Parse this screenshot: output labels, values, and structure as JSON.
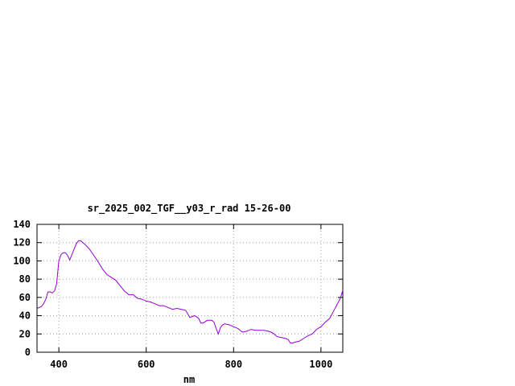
{
  "chart_data": {
    "type": "line",
    "title": "sr_2025_002_TGF__y03_r_rad 15-26-00",
    "xlabel": "nm",
    "ylabel": "",
    "xlim": [
      350,
      1050
    ],
    "ylim": [
      0,
      140
    ],
    "x_ticks": [
      400,
      600,
      800,
      1000
    ],
    "y_ticks": [
      0,
      20,
      40,
      60,
      80,
      100,
      120,
      140
    ],
    "grid": true,
    "line_color": "#9400d3",
    "series": [
      {
        "x": [
          350,
          360,
          365,
          370,
          375,
          380,
          385,
          390,
          395,
          400,
          405,
          410,
          415,
          420,
          425,
          430,
          440,
          445,
          450,
          455,
          460,
          470,
          480,
          490,
          500,
          510,
          520,
          530,
          540,
          550,
          560,
          570,
          580,
          590,
          600,
          610,
          620,
          630,
          640,
          650,
          660,
          670,
          680,
          690,
          700,
          710,
          715,
          720,
          725,
          730,
          740,
          750,
          755,
          760,
          765,
          770,
          775,
          780,
          790,
          800,
          810,
          820,
          830,
          840,
          850,
          860,
          870,
          880,
          890,
          900,
          910,
          920,
          925,
          930,
          935,
          940,
          950,
          960,
          970,
          980,
          990,
          1000,
          1010,
          1020,
          1030,
          1040,
          1045,
          1050
        ],
        "values": [
          48,
          50,
          53,
          58,
          66,
          66,
          65,
          67,
          75,
          100,
          107,
          109,
          109,
          106,
          101,
          107,
          119,
          122,
          122,
          120,
          118,
          113,
          106,
          99,
          91,
          85,
          82,
          79,
          73,
          67,
          63,
          63,
          59,
          58,
          56,
          55,
          53,
          51,
          51,
          49,
          47,
          48,
          47,
          46,
          38,
          40,
          39,
          37,
          32,
          32,
          35,
          35,
          33,
          26,
          20,
          27,
          30,
          31,
          30,
          28,
          26,
          22,
          23,
          25,
          24,
          24,
          24,
          23,
          21,
          17,
          16,
          15,
          14,
          10,
          10,
          11,
          12,
          15,
          18,
          20,
          25,
          28,
          33,
          37,
          46,
          55,
          60,
          68
        ]
      }
    ]
  }
}
